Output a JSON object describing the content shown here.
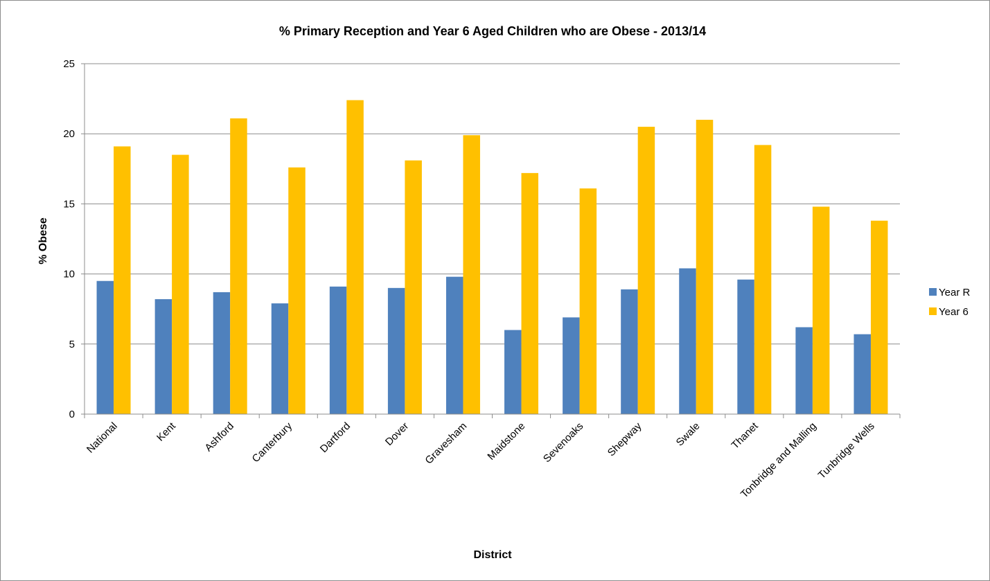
{
  "chart_data": {
    "type": "bar",
    "title": "% Primary Reception and Year 6 Aged Children who are Obese - 2013/14",
    "xlabel": "District",
    "ylabel": "% Obese",
    "ylim": [
      0,
      25
    ],
    "yticks": [
      0,
      5,
      10,
      15,
      20,
      25
    ],
    "grid": true,
    "legend_position": "right",
    "categories": [
      "National",
      "Kent",
      "Ashford",
      "Canterbury",
      "Dartford",
      "Dover",
      "Gravesham",
      "Maidstone",
      "Sevenoaks",
      "Shepway",
      "Swale",
      "Thanet",
      "Tonbridge and Malling",
      "Tunbridge Wells"
    ],
    "series": [
      {
        "name": "Year R",
        "color": "#4F81BD",
        "values": [
          9.5,
          8.2,
          8.7,
          7.9,
          9.1,
          9.0,
          9.8,
          6.0,
          6.9,
          8.9,
          10.4,
          9.6,
          6.2,
          5.7
        ]
      },
      {
        "name": "Year 6",
        "color": "#FFC000",
        "values": [
          19.1,
          18.5,
          21.1,
          17.6,
          22.4,
          18.1,
          19.9,
          17.2,
          16.1,
          20.5,
          21.0,
          19.2,
          14.8,
          13.8
        ]
      }
    ]
  }
}
